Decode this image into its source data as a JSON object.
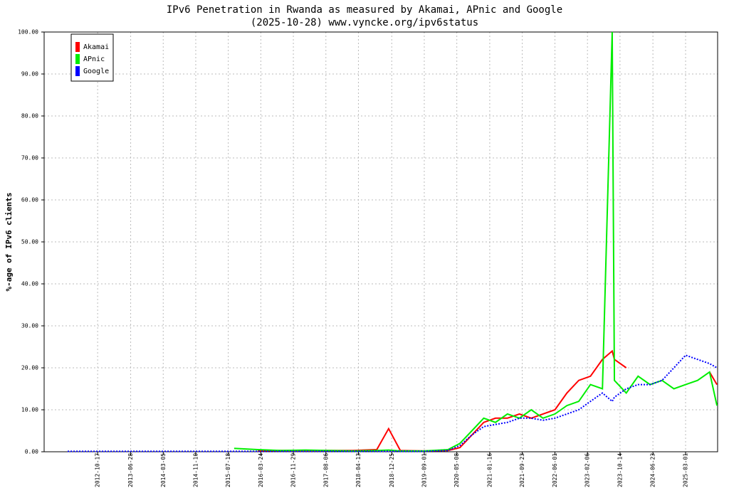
{
  "chart_data": {
    "type": "line",
    "title": "IPv6 Penetration in Rwanda as measured by Akamai, APnic and Google",
    "subtitle": "(2025-10-28) www.vyncke.org/ipv6status",
    "y_label": "%-age of IPv6 clients",
    "x": [
      "2012-03-01",
      "2012-09-01",
      "2013-03-01",
      "2013-09-01",
      "2014-03-01",
      "2014-09-01",
      "2015-03-01",
      "2015-09-01",
      "2016-03-01",
      "2016-09-01",
      "2017-03-01",
      "2017-09-01",
      "2018-03-01",
      "2018-09-01",
      "2018-12-01",
      "2019-03-01",
      "2019-09-01",
      "2020-03-01",
      "2020-06-01",
      "2020-09-01",
      "2020-12-01",
      "2021-03-01",
      "2021-06-01",
      "2021-09-01",
      "2021-12-01",
      "2022-03-01",
      "2022-06-01",
      "2022-09-01",
      "2022-12-01",
      "2023-03-01",
      "2023-06-01",
      "2023-08-15",
      "2023-09-01",
      "2023-12-01",
      "2024-03-01",
      "2024-06-01",
      "2024-09-01",
      "2024-12-01",
      "2025-03-01",
      "2025-06-01",
      "2025-09-01",
      "2025-10-28"
    ],
    "series": [
      {
        "name": "Akamai",
        "color": "#ff0000",
        "values": [
          null,
          null,
          null,
          null,
          null,
          null,
          null,
          null,
          0.2,
          0.3,
          0.3,
          0.3,
          0.3,
          0.5,
          5.5,
          0.3,
          0.2,
          0.3,
          1,
          4,
          7,
          8,
          8,
          9,
          8,
          9,
          10,
          14,
          17,
          18,
          22,
          24,
          22,
          20,
          null,
          null,
          null,
          null,
          null,
          null,
          19,
          16
        ]
      },
      {
        "name": "APnic",
        "color": "#00ee00",
        "values": [
          null,
          null,
          null,
          null,
          null,
          null,
          null,
          0.8,
          0.5,
          0.3,
          0.4,
          0.3,
          0.2,
          0.3,
          0.4,
          0.2,
          0.2,
          0.5,
          2,
          5,
          8,
          7,
          9,
          8,
          10,
          8,
          9,
          11,
          12,
          16,
          15,
          100,
          17,
          14,
          18,
          16,
          17,
          15,
          16,
          17,
          19,
          11
        ]
      },
      {
        "name": "Google",
        "color": "#0000ff",
        "values": [
          0.1,
          0.1,
          0.1,
          0.1,
          0.1,
          0.1,
          0.1,
          0.1,
          0.1,
          0.1,
          0.1,
          0.1,
          0.1,
          0.1,
          0.1,
          0.1,
          0.1,
          0.3,
          1.5,
          4,
          6,
          6.5,
          7,
          8,
          8,
          7.5,
          8,
          9,
          10,
          12,
          14,
          12,
          13,
          15,
          16,
          16,
          17,
          20,
          23,
          22,
          21,
          20
        ]
      }
    ],
    "xlim": [
      "2011-09-02",
      "2025-11-02"
    ],
    "xticks": [
      "2012-10-17",
      "2013-06-28",
      "2014-03-05",
      "2014-11-10",
      "2015-07-18",
      "2016-03-24",
      "2016-11-29",
      "2017-08-06",
      "2018-04-13",
      "2018-12-25",
      "2019-09-01",
      "2020-05-08",
      "2021-01-16",
      "2021-09-23",
      "2022-06-01",
      "2023-02-06",
      "2023-10-14",
      "2024-06-23",
      "2025-03-01"
    ],
    "ylim": [
      0,
      100
    ],
    "yticks": [
      {
        "value": 0,
        "label": "0.00"
      },
      {
        "value": 10,
        "label": "10.00"
      },
      {
        "value": 20,
        "label": "20.00"
      },
      {
        "value": 30,
        "label": "30.00"
      },
      {
        "value": 40,
        "label": "40.00"
      },
      {
        "value": 50,
        "label": "50.00"
      },
      {
        "value": 60,
        "label": "60.00"
      },
      {
        "value": 70,
        "label": "70.00"
      },
      {
        "value": 80,
        "label": "80.00"
      },
      {
        "value": 90,
        "label": "90.00"
      },
      {
        "value": 100,
        "label": "100.00"
      }
    ],
    "grid": true,
    "legend": "top-left"
  }
}
